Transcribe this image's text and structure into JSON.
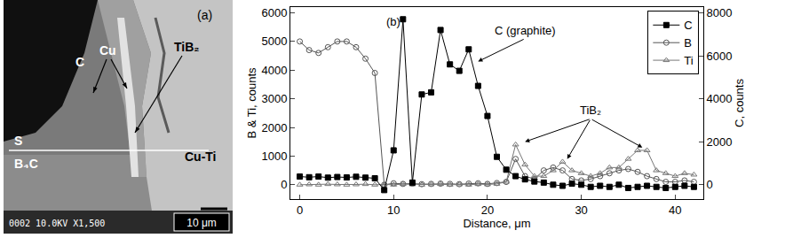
{
  "panel_a": {
    "label": "(a)",
    "labels": [
      "C",
      "Cu",
      "TiB₂",
      "S",
      "B₄C",
      "Cu-Ti"
    ],
    "info": "0002 10.0KV X1,500",
    "scale_bar": "10 μm"
  },
  "chart_data": {
    "type": "line",
    "panel_label": {
      "text": "(b)",
      "x": 10,
      "y": 5700
    },
    "xlabel": "Distance, μm",
    "ylabel": "B & Ti, counts",
    "y2label": "C, counts",
    "x": [
      0,
      1,
      2,
      3,
      4,
      5,
      6,
      7,
      8,
      9,
      10,
      11,
      12,
      13,
      14,
      15,
      16,
      17,
      18,
      19,
      20,
      21,
      22,
      23,
      24,
      25,
      26,
      27,
      28,
      29,
      30,
      31,
      32,
      33,
      34,
      35,
      36,
      37,
      38,
      39,
      40,
      41,
      42
    ],
    "series": [
      {
        "name": "C",
        "color": "#000000",
        "marker": "square",
        "axis": "y2",
        "values": [
          380,
          350,
          380,
          330,
          360,
          340,
          370,
          330,
          300,
          -250,
          1600,
          7700,
          100,
          4200,
          4300,
          7200,
          5600,
          5300,
          6300,
          4600,
          3200,
          1300,
          700,
          400,
          250,
          150,
          100,
          0,
          -50,
          50,
          0,
          -100,
          -50,
          -100,
          0,
          -150,
          -100,
          -50,
          -100,
          -150,
          -100,
          -50,
          -100
        ]
      },
      {
        "name": "B",
        "color": "#555555",
        "marker": "circle-open",
        "values": [
          5000,
          4700,
          4600,
          4800,
          5000,
          5000,
          4800,
          4400,
          3900,
          0,
          50,
          30,
          40,
          20,
          30,
          40,
          30,
          20,
          40,
          50,
          30,
          60,
          100,
          900,
          300,
          200,
          500,
          600,
          500,
          200,
          150,
          200,
          300,
          400,
          500,
          550,
          450,
          300,
          200,
          100,
          100,
          150,
          100
        ]
      },
      {
        "name": "Ti",
        "color": "#777777",
        "marker": "triangle-up-open",
        "values": [
          0,
          10,
          0,
          20,
          10,
          0,
          10,
          20,
          0,
          10,
          0,
          20,
          10,
          0,
          10,
          20,
          0,
          10,
          0,
          20,
          10,
          30,
          100,
          1400,
          700,
          300,
          300,
          500,
          800,
          500,
          400,
          300,
          400,
          600,
          600,
          900,
          1200,
          1200,
          500,
          400,
          300,
          400,
          350
        ]
      }
    ],
    "annotations": [
      {
        "text": "C (graphite)",
        "x": 24,
        "y": 5100,
        "points": [
          [
            19,
            4300
          ]
        ]
      },
      {
        "text": "TiB₂",
        "x": 31,
        "y": 2300,
        "points": [
          [
            24,
            1500
          ],
          [
            28.5,
            900
          ],
          [
            36.5,
            1300
          ]
        ]
      }
    ],
    "xlim": [
      -1,
      43
    ],
    "xticks": [
      0,
      10,
      20,
      30,
      40
    ],
    "ylim": [
      -500,
      6200
    ],
    "yticks": [
      0,
      1000,
      2000,
      3000,
      4000,
      5000,
      6000
    ],
    "y2lim": [
      -667,
      8267
    ],
    "y2ticks": [
      0,
      2000,
      4000,
      6000,
      8000
    ],
    "legend": "top right",
    "grid": false
  }
}
